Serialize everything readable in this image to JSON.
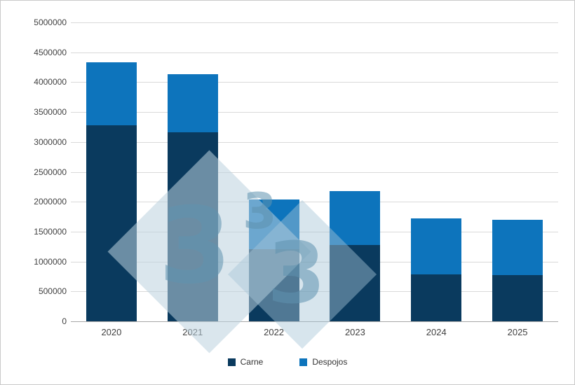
{
  "chart_data": {
    "type": "bar",
    "stacked": true,
    "title": "",
    "xlabel": "",
    "ylabel": "",
    "categories": [
      "2020",
      "2021",
      "2022",
      "2023",
      "2024",
      "2025"
    ],
    "series": [
      {
        "name": "Carne",
        "color": "#0a3a5e",
        "values": [
          3280000,
          3160000,
          1210000,
          1280000,
          780000,
          770000
        ]
      },
      {
        "name": "Despojos",
        "color": "#0d74bc",
        "values": [
          1050000,
          970000,
          830000,
          900000,
          940000,
          930000
        ]
      }
    ],
    "ylim": [
      0,
      5000000
    ],
    "ytick_step": 500000,
    "yticks": [
      0,
      500000,
      1000000,
      1500000,
      2000000,
      2500000,
      3000000,
      3500000,
      4000000,
      4500000,
      5000000
    ],
    "grid": "horizontal",
    "legend_position": "bottom"
  },
  "watermark": {
    "digits": [
      "3",
      "3",
      "3"
    ]
  },
  "style": {
    "background": "#ffffff",
    "border_color": "#c9c9c9",
    "grid_color": "#d9d9d9",
    "axis_text_color": "#404040"
  }
}
